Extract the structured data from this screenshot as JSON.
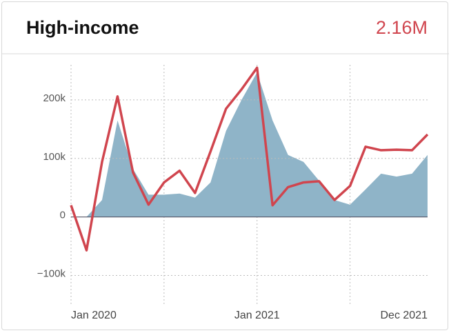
{
  "chart_data": {
    "type": "area-line",
    "title": "High-income",
    "total": "2.16M",
    "categories": [
      "Jan 2020",
      null,
      null,
      null,
      null,
      null,
      null,
      null,
      null,
      null,
      null,
      null,
      "Jan 2021",
      null,
      null,
      null,
      null,
      null,
      null,
      null,
      null,
      null,
      null,
      "Dec 2021"
    ],
    "series": [
      {
        "kind": "area",
        "color": "#8fb4c8",
        "values": [
          null,
          0,
          29000,
          165000,
          82000,
          38000,
          38000,
          40000,
          33000,
          59000,
          147000,
          200000,
          247000,
          165000,
          106000,
          94000,
          62000,
          29000,
          21000,
          47000,
          74000,
          69000,
          74000,
          106000
        ]
      },
      {
        "kind": "line",
        "color": "#d0454e",
        "values": [
          20000,
          -57000,
          94000,
          206000,
          76000,
          21000,
          59000,
          79000,
          41000,
          112000,
          185000,
          218000,
          255000,
          20000,
          51000,
          59000,
          61000,
          29000,
          53000,
          120000,
          114000,
          115000,
          114000,
          141000
        ]
      }
    ],
    "ylim": [
      -150000,
      260000
    ],
    "yticks": [
      {
        "value": -100000,
        "label": "−100k"
      },
      0,
      {
        "value": 100000,
        "label": "100k"
      },
      {
        "value": 200000,
        "label": "200k"
      }
    ],
    "grid": true
  }
}
